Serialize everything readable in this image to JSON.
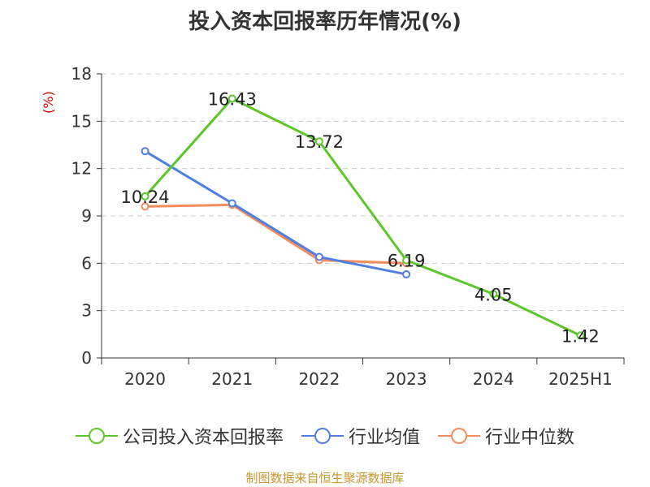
{
  "chart_data": {
    "type": "line",
    "title": "投入资本回报率历年情况(%)",
    "ylabel": "(%)",
    "xlabel": "",
    "categories": [
      "2020",
      "2021",
      "2022",
      "2023",
      "2024",
      "2025H1"
    ],
    "ylim": [
      0,
      18
    ],
    "yticks": [
      0,
      3,
      6,
      9,
      12,
      15,
      18
    ],
    "grid": "horizontal dashed",
    "legend_position": "bottom",
    "series": [
      {
        "name": "公司投入资本回报率",
        "color": "#5cc62b",
        "values": [
          10.24,
          16.43,
          13.72,
          6.19,
          4.05,
          1.42
        ],
        "labels": [
          "10.24",
          "16.43",
          "13.72",
          "6.19",
          "4.05",
          "1.42"
        ]
      },
      {
        "name": "行业均值",
        "color": "#4f7fe0",
        "values": [
          13.1,
          9.8,
          6.4,
          5.3,
          null,
          null
        ]
      },
      {
        "name": "行业中位数",
        "color": "#f48c5c",
        "values": [
          9.6,
          9.7,
          6.2,
          6.0,
          null,
          null
        ]
      }
    ]
  },
  "footer": {
    "source": "制图数据来自恒生聚源数据库"
  }
}
